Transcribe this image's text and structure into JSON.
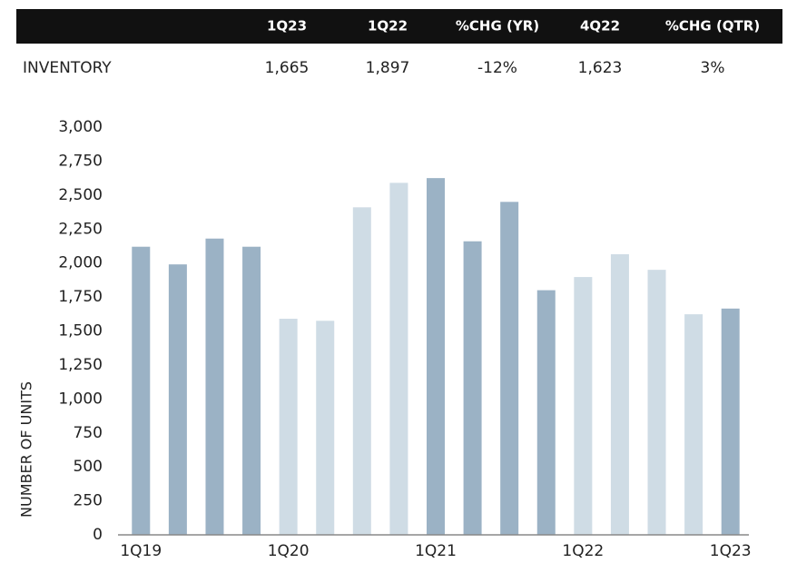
{
  "table": {
    "header": [
      "1Q23",
      "1Q22",
      "%CHG (YR)",
      "4Q22",
      "%CHG (QTR)"
    ],
    "rows": [
      {
        "label": "INVENTORY",
        "cells": [
          "1,665",
          "1,897",
          "-12%",
          "1,623",
          "3%"
        ]
      }
    ]
  },
  "chart_data": {
    "type": "bar",
    "y_label": "NUMBER OF UNITS",
    "categories": [
      "1Q19",
      null,
      null,
      null,
      "1Q20",
      null,
      null,
      null,
      "1Q21",
      null,
      null,
      null,
      "1Q22",
      null,
      null,
      null,
      "1Q23"
    ],
    "values": [
      2120,
      1990,
      2180,
      2120,
      1590,
      1575,
      2410,
      2590,
      2625,
      2160,
      2450,
      1800,
      1897,
      2065,
      1950,
      1623,
      1665
    ],
    "colors": [
      "#9bb2c5",
      "#9bb2c5",
      "#9bb2c5",
      "#9bb2c5",
      "#cfdce5",
      "#cfdce5",
      "#cfdce5",
      "#cfdce5",
      "#9bb2c5",
      "#9bb2c5",
      "#9bb2c5",
      "#9bb2c5",
      "#cfdce5",
      "#cfdce5",
      "#cfdce5",
      "#cfdce5",
      "#9bb2c5"
    ],
    "ylim": [
      0,
      3000
    ],
    "yticks": [
      0,
      250,
      500,
      750,
      {
        "value": 1000,
        "label": "1,000"
      },
      {
        "value": 1250,
        "label": "1,250"
      },
      {
        "value": 1500,
        "label": "1,500"
      },
      {
        "value": 1750,
        "label": "1,750"
      },
      {
        "value": 2000,
        "label": "2,000"
      },
      {
        "value": 2250,
        "label": "2,250"
      },
      {
        "value": 2500,
        "label": "2,500"
      },
      {
        "value": 2750,
        "label": "2,750"
      },
      {
        "value": 3000,
        "label": "3,000"
      }
    ],
    "grid": false
  }
}
